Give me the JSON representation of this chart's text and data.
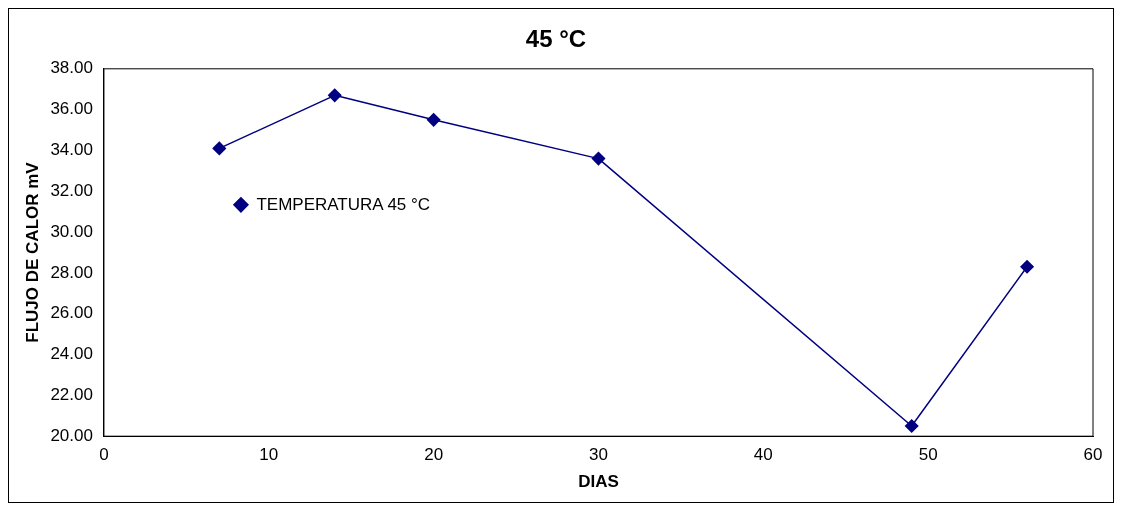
{
  "chart_data": {
    "type": "line",
    "title": "45 °C",
    "xlabel": "DIAS",
    "ylabel": "FLUJO DE CALOR mV",
    "series": [
      {
        "name": "TEMPERATURA 45 °C",
        "color": "#000080",
        "x": [
          7,
          14,
          20,
          30,
          49,
          56
        ],
        "values": [
          34.1,
          36.7,
          35.5,
          33.6,
          20.5,
          28.3
        ]
      }
    ],
    "xlim": [
      0,
      60
    ],
    "xticks": [
      0,
      10,
      20,
      30,
      40,
      50,
      60
    ],
    "ylim": [
      20,
      38
    ],
    "yticks": [
      {
        "value": 20,
        "label": "20.00"
      },
      {
        "value": 22,
        "label": "22.00"
      },
      {
        "value": 24,
        "label": "24.00"
      },
      {
        "value": 26,
        "label": "26.00"
      },
      {
        "value": 28,
        "label": "28.00"
      },
      {
        "value": 30,
        "label": "30.00"
      },
      {
        "value": 32,
        "label": "32.00"
      },
      {
        "value": 34,
        "label": "34.00"
      },
      {
        "value": 36,
        "label": "36.00"
      },
      {
        "value": 38,
        "label": "38.00"
      }
    ],
    "grid": false,
    "legend": "left",
    "marker": "diamond",
    "line_style": "solid"
  }
}
